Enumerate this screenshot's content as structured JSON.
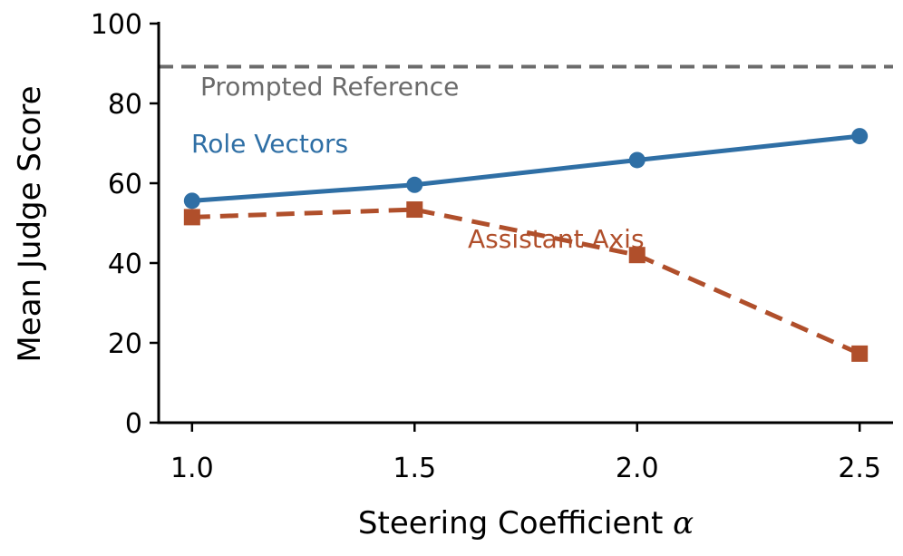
{
  "chart_data": {
    "type": "line",
    "title": "",
    "xlabel": "Steering Coefficient",
    "xlabel_symbol": "α",
    "ylabel": "Mean Judge Score",
    "xlim": [
      0.925,
      2.575
    ],
    "ylim": [
      0,
      100
    ],
    "x": [
      1.0,
      1.5,
      2.0,
      2.5
    ],
    "x_tick_labels": [
      "1.0",
      "1.5",
      "2.0",
      "2.5"
    ],
    "y_ticks": [
      0,
      20,
      40,
      60,
      80,
      100
    ],
    "y_tick_labels": [
      "0",
      "20",
      "40",
      "60",
      "80",
      "100"
    ],
    "grid": false,
    "series": [
      {
        "name": "Role Vectors",
        "values": [
          55.6,
          59.6,
          65.8,
          71.8
        ],
        "color": "#2f6fa5",
        "line_style": "solid",
        "marker": "circle"
      },
      {
        "name": "Assistant Axis",
        "values": [
          51.5,
          53.4,
          42.0,
          17.3
        ],
        "color": "#b04f2b",
        "line_style": "dashed",
        "marker": "square"
      }
    ],
    "reference_line": {
      "label": "Prompted Reference",
      "value": 89.2,
      "color": "#6b6b6b",
      "line_style": "dashed"
    }
  }
}
